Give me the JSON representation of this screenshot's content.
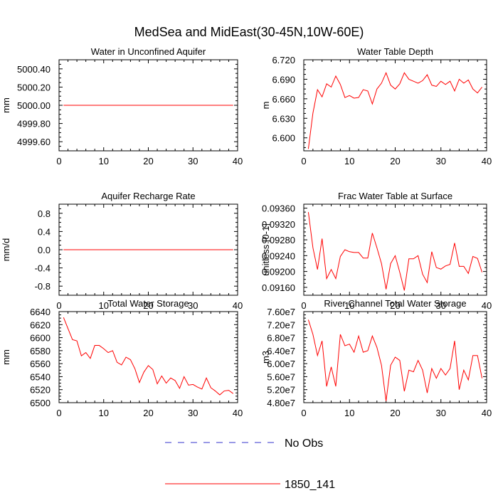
{
  "figure": {
    "title": "MedSea and MidEast(30-45N,10W-60E)"
  },
  "legend": [
    {
      "label": "No Obs",
      "color": "#3333cc",
      "dash": true
    },
    {
      "label": "1850_141",
      "color": "#ff0000",
      "dash": false
    }
  ],
  "chart_data": [
    {
      "type": "line",
      "title": "Water in Unconfined Aquifer",
      "ylabel": "mm",
      "xlim": [
        0,
        40
      ],
      "ylim": [
        4999.5,
        5000.5
      ],
      "xticks": [
        0,
        10,
        20,
        30,
        40
      ],
      "yticks": [
        4999.6,
        4999.8,
        5000.0,
        5000.2,
        5000.4
      ],
      "ytick_labels": [
        "4999.60",
        "4999.80",
        "5000.00",
        "5000.20",
        "5000.40"
      ],
      "series": [
        {
          "name": "1850_141",
          "color": "#ff0000",
          "x": [
            1,
            39
          ],
          "values": [
            5000.0,
            5000.0
          ]
        }
      ]
    },
    {
      "type": "line",
      "title": "Water Table Depth",
      "ylabel": "m",
      "xlim": [
        0,
        40
      ],
      "ylim": [
        6.58,
        6.72
      ],
      "xticks": [
        0,
        10,
        20,
        30,
        40
      ],
      "yticks": [
        6.6,
        6.63,
        6.66,
        6.69,
        6.72
      ],
      "ytick_labels": [
        "6.600",
        "6.630",
        "6.660",
        "6.690",
        "6.720"
      ],
      "series": [
        {
          "name": "1850_141",
          "color": "#ff0000",
          "x": [
            1,
            2,
            3,
            4,
            5,
            6,
            7,
            8,
            9,
            10,
            11,
            12,
            13,
            14,
            15,
            16,
            17,
            18,
            19,
            20,
            21,
            22,
            23,
            24,
            25,
            26,
            27,
            28,
            29,
            30,
            31,
            32,
            33,
            34,
            35,
            36,
            37,
            38,
            39
          ],
          "values": [
            6.583,
            6.638,
            6.674,
            6.663,
            6.683,
            6.678,
            6.695,
            6.682,
            6.662,
            6.665,
            6.661,
            6.662,
            6.674,
            6.672,
            6.652,
            6.675,
            6.684,
            6.7,
            6.681,
            6.675,
            6.683,
            6.7,
            6.69,
            6.687,
            6.684,
            6.688,
            6.697,
            6.681,
            6.679,
            6.687,
            6.682,
            6.687,
            6.672,
            6.69,
            6.684,
            6.689,
            6.675,
            6.669,
            6.678
          ]
        }
      ]
    },
    {
      "type": "line",
      "title": "Aquifer Recharge Rate",
      "ylabel": "mm/d",
      "xlim": [
        0,
        40
      ],
      "ylim": [
        -1.0,
        1.0
      ],
      "xticks": [
        0,
        10,
        20,
        30,
        40
      ],
      "yticks": [
        -0.8,
        -0.4,
        0.0,
        0.4,
        0.8
      ],
      "ytick_labels": [
        "-0.8",
        "-0.4",
        "0.0",
        "0.4",
        "0.8"
      ],
      "series": [
        {
          "name": "1850_141",
          "color": "#ff0000",
          "x": [
            1,
            39
          ],
          "values": [
            0.0,
            0.0
          ]
        }
      ]
    },
    {
      "type": "line",
      "title": "Frac Water Table at Surface",
      "ylabel": "unitless [0-1]",
      "xlim": [
        0,
        40
      ],
      "ylim": [
        0.0914,
        0.0937
      ],
      "xticks": [
        0,
        10,
        20,
        30,
        40
      ],
      "yticks": [
        0.0916,
        0.092,
        0.0924,
        0.0928,
        0.0932,
        0.0936
      ],
      "ytick_labels": [
        "0.09160",
        "0.09200",
        "0.09240",
        "0.09280",
        "0.09320",
        "0.09360"
      ],
      "series": [
        {
          "name": "1850_141",
          "color": "#ff0000",
          "x": [
            1,
            2,
            3,
            4,
            5,
            6,
            7,
            8,
            9,
            10,
            11,
            12,
            13,
            14,
            15,
            16,
            17,
            18,
            19,
            20,
            21,
            22,
            23,
            24,
            25,
            26,
            27,
            28,
            29,
            30,
            31,
            32,
            33,
            34,
            35,
            36,
            37,
            38,
            39
          ],
          "values": [
            0.0935,
            0.0926,
            0.09205,
            0.09283,
            0.09182,
            0.09205,
            0.09182,
            0.09238,
            0.09255,
            0.0925,
            0.09248,
            0.09248,
            0.09234,
            0.09234,
            0.09297,
            0.0926,
            0.0922,
            0.09155,
            0.0922,
            0.0924,
            0.09198,
            0.09152,
            0.09232,
            0.09232,
            0.0924,
            0.09193,
            0.09172,
            0.0925,
            0.0921,
            0.09206,
            0.09214,
            0.09218,
            0.09272,
            0.09213,
            0.09213,
            0.09195,
            0.09238,
            0.09233,
            0.09198
          ]
        }
      ]
    },
    {
      "type": "line",
      "title": "Total Water Storage",
      "ylabel": "mm",
      "xlim": [
        0,
        40
      ],
      "ylim": [
        6500,
        6640
      ],
      "xticks": [
        0,
        10,
        20,
        30,
        40
      ],
      "yticks": [
        6500,
        6520,
        6540,
        6560,
        6580,
        6600,
        6620,
        6640
      ],
      "ytick_labels": [
        "6500",
        "6520",
        "6540",
        "6560",
        "6580",
        "6600",
        "6620",
        "6640"
      ],
      "series": [
        {
          "name": "1850_141",
          "color": "#ff0000",
          "x": [
            1,
            2,
            3,
            4,
            5,
            6,
            7,
            8,
            9,
            10,
            11,
            12,
            13,
            14,
            15,
            16,
            17,
            18,
            19,
            20,
            21,
            22,
            23,
            24,
            25,
            26,
            27,
            28,
            29,
            30,
            31,
            32,
            33,
            34,
            35,
            36,
            37,
            38,
            39
          ],
          "values": [
            6631,
            6614,
            6597,
            6595,
            6572,
            6577,
            6568,
            6588,
            6588,
            6583,
            6577,
            6580,
            6562,
            6558,
            6570,
            6566,
            6552,
            6531,
            6547,
            6557,
            6551,
            6529,
            6541,
            6530,
            6538,
            6534,
            6522,
            6540,
            6527,
            6528,
            6524,
            6521,
            6538,
            6523,
            6518,
            6512,
            6518,
            6519,
            6514
          ]
        }
      ]
    },
    {
      "type": "line",
      "title": "River Channel Total Water Storage",
      "ylabel": "m3",
      "xlim": [
        0,
        40
      ],
      "ylim": [
        48000000,
        76000000
      ],
      "xticks": [
        0,
        10,
        20,
        30,
        40
      ],
      "yticks": [
        48000000,
        52000000,
        56000000,
        60000000,
        64000000,
        68000000,
        72000000,
        76000000
      ],
      "ytick_labels": [
        "4.80e7",
        "5.20e7",
        "5.60e7",
        "6.00e7",
        "6.40e7",
        "6.80e7",
        "7.20e7",
        "7.60e7"
      ],
      "series": [
        {
          "name": "1850_141",
          "color": "#ff0000",
          "x": [
            1,
            2,
            3,
            4,
            5,
            6,
            7,
            8,
            9,
            10,
            11,
            12,
            13,
            14,
            15,
            16,
            17,
            18,
            19,
            20,
            21,
            22,
            23,
            24,
            25,
            26,
            27,
            28,
            29,
            30,
            31,
            32,
            33,
            34,
            35,
            36,
            37,
            38,
            39
          ],
          "values": [
            73500000,
            69000000,
            62500000,
            67000000,
            53000000,
            59000000,
            53000000,
            69000000,
            65500000,
            66000000,
            63500000,
            68500000,
            63500000,
            64000000,
            68500000,
            65000000,
            59500000,
            48500000,
            59500000,
            62000000,
            61000000,
            51500000,
            58000000,
            57500000,
            61000000,
            58000000,
            51000000,
            58500000,
            55500000,
            58500000,
            56500000,
            58500000,
            67000000,
            52000000,
            58000000,
            55000000,
            62500000,
            62500000,
            55500000
          ]
        }
      ]
    }
  ]
}
